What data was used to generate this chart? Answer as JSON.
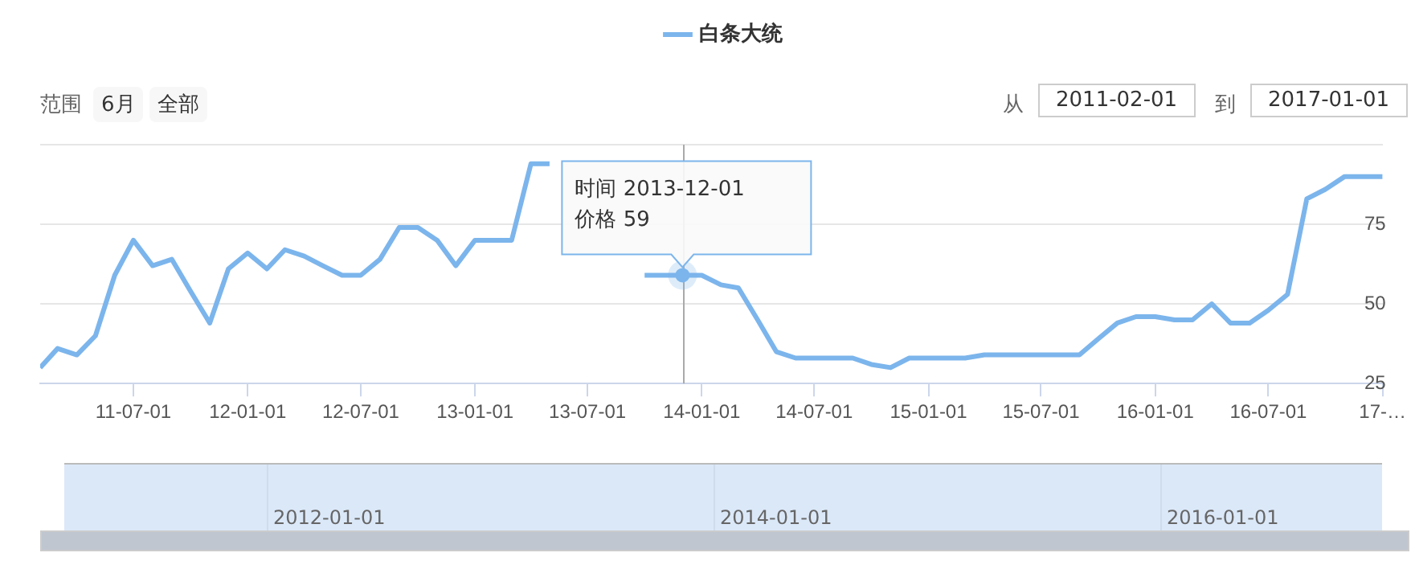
{
  "chart_data": {
    "type": "line",
    "x": [
      "2011-02-01",
      "2011-03-01",
      "2011-04-01",
      "2011-05-01",
      "2011-06-01",
      "2011-07-01",
      "2011-08-01",
      "2011-09-01",
      "2011-10-01",
      "2011-11-01",
      "2011-12-01",
      "2012-01-01",
      "2012-02-01",
      "2012-03-01",
      "2012-04-01",
      "2012-05-01",
      "2012-06-01",
      "2012-07-01",
      "2012-08-01",
      "2012-09-01",
      "2012-10-01",
      "2012-11-01",
      "2012-12-01",
      "2013-01-01",
      "2013-02-01",
      "2013-03-01",
      "2013-04-01",
      "2013-05-01",
      "2013-06-01",
      "2013-07-01",
      "2013-08-01",
      "2013-09-01",
      "2013-10-01",
      "2013-11-01",
      "2013-12-01",
      "2014-01-01",
      "2014-02-01",
      "2014-03-01",
      "2014-04-01",
      "2014-05-01",
      "2014-06-01",
      "2014-07-01",
      "2014-08-01",
      "2014-09-01",
      "2014-10-01",
      "2014-11-01",
      "2014-12-01",
      "2015-01-01",
      "2015-02-01",
      "2015-03-01",
      "2015-04-01",
      "2015-05-01",
      "2015-06-01",
      "2015-07-01",
      "2015-08-01",
      "2015-09-01",
      "2015-10-01",
      "2015-11-01",
      "2015-12-01",
      "2016-01-01",
      "2016-02-01",
      "2016-03-01",
      "2016-04-01",
      "2016-05-01",
      "2016-06-01",
      "2016-07-01",
      "2016-08-01",
      "2016-09-01",
      "2016-10-01",
      "2016-11-01",
      "2016-12-01",
      "2017-01-01"
    ],
    "series": [
      {
        "name": "白条大统",
        "color": "#7cb5ec",
        "values": [
          30,
          36,
          34,
          40,
          59,
          70,
          62,
          64,
          54,
          44,
          61,
          66,
          61,
          67,
          65,
          62,
          59,
          59,
          64,
          74,
          74,
          70,
          62,
          70,
          70,
          70,
          94,
          94,
          null,
          null,
          null,
          null,
          59,
          59,
          59,
          59,
          56,
          55,
          45,
          35,
          33,
          33,
          33,
          33,
          31,
          30,
          33,
          33,
          33,
          33,
          34,
          34,
          34,
          34,
          34,
          34,
          39,
          44,
          46,
          46,
          45,
          45,
          50,
          44,
          44,
          48,
          53,
          83,
          86,
          90,
          90,
          90
        ]
      }
    ],
    "xlim": [
      "2011-02-01",
      "2017-01-01"
    ],
    "xticks": [
      {
        "value": "2011-07-01",
        "label": "11-07-01"
      },
      {
        "value": "2012-01-01",
        "label": "12-01-01"
      },
      {
        "value": "2012-07-01",
        "label": "12-07-01"
      },
      {
        "value": "2013-01-01",
        "label": "13-01-01"
      },
      {
        "value": "2013-07-01",
        "label": "13-07-01"
      },
      {
        "value": "2014-01-01",
        "label": "14-01-01"
      },
      {
        "value": "2014-07-01",
        "label": "14-07-01"
      },
      {
        "value": "2015-01-01",
        "label": "15-01-01"
      },
      {
        "value": "2015-07-01",
        "label": "15-07-01"
      },
      {
        "value": "2016-01-01",
        "label": "16-01-01"
      },
      {
        "value": "2016-07-01",
        "label": "16-07-01"
      },
      {
        "value": "2017-01-01",
        "label": "17-…"
      }
    ],
    "ylim": [
      25,
      100
    ],
    "yticks": [
      25,
      50,
      75,
      {
        "value": 100,
        "label": null
      }
    ],
    "grid": "y",
    "legend": "top",
    "marker": "none",
    "ref_lines": [
      {
        "axis": "x",
        "value": "2013-12-01",
        "color": "#aaaaaa"
      }
    ],
    "annotations": [
      {
        "text": "时间 2013-12-01\n价格 59",
        "x": "2013-12-01",
        "y": 59
      },
      "范围",
      "6月",
      "全部",
      "从",
      "2011-02-01",
      "到",
      "2017-01-01",
      "2012-01-01",
      "2014-01-01",
      "2016-01-01"
    ]
  }
}
